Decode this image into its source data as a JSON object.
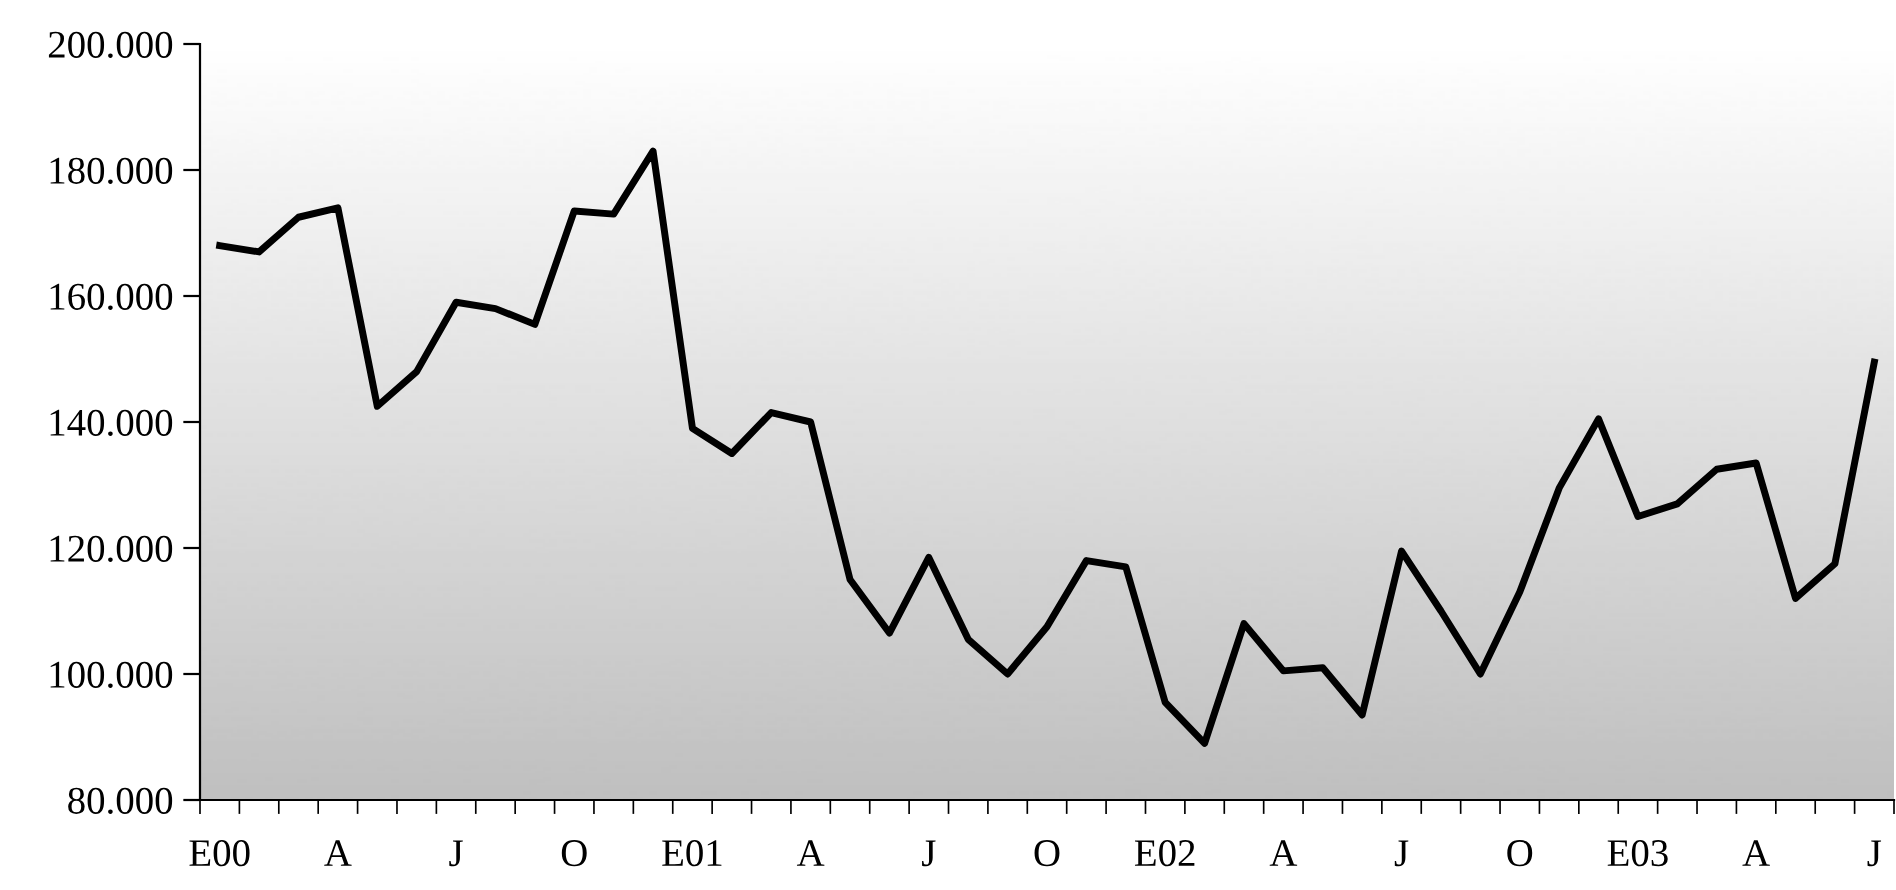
{
  "chart_data": {
    "type": "line",
    "categories": [
      "E00",
      null,
      null,
      "A",
      null,
      null,
      "J",
      null,
      null,
      "O",
      null,
      null,
      "E01",
      null,
      null,
      "A",
      null,
      null,
      "J",
      null,
      null,
      "O",
      null,
      null,
      "E02",
      null,
      null,
      "A",
      null,
      null,
      "J",
      null,
      null,
      "O",
      null,
      null,
      "E03",
      null,
      null,
      "A",
      null,
      null,
      "J"
    ],
    "series": [
      {
        "color": "#000000",
        "values": [
          168000,
          167000,
          172500,
          174000,
          142500,
          148000,
          159000,
          158000,
          155500,
          173500,
          173000,
          183000,
          139000,
          135000,
          141500,
          140000,
          115000,
          106500,
          118500,
          105500,
          100000,
          107500,
          118000,
          117000,
          95500,
          89000,
          108000,
          100500,
          101000,
          93500,
          119500,
          110000,
          100000,
          113000,
          129500,
          140500,
          125000,
          127000,
          132500,
          133500,
          112000,
          117500,
          149500
        ]
      }
    ],
    "ylim": [
      80000,
      200000
    ],
    "yticks": [
      {
        "value": 80000,
        "label": "80.000"
      },
      {
        "value": 100000,
        "label": "100.000"
      },
      {
        "value": 120000,
        "label": "120.000"
      },
      {
        "value": 140000,
        "label": "140.000"
      },
      {
        "value": 160000,
        "label": "160.000"
      },
      {
        "value": 180000,
        "label": "180.000"
      },
      {
        "value": 200000,
        "label": "200.000"
      }
    ],
    "grid": false,
    "marker": "none",
    "line_style": "solid"
  }
}
